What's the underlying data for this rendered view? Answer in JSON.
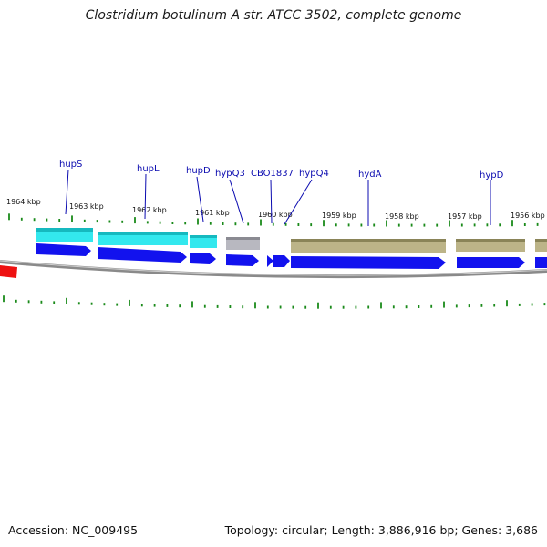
{
  "title": "Clostridium botulinum A str. ATCC 3502, complete genome",
  "ticks": [
    "1964 kbp",
    "1963 kbp",
    "1962 kbp",
    "1961 kbp",
    "1960 kbp",
    "1959 kbp",
    "1958 kbp",
    "1957 kbp",
    "1956 kbp"
  ],
  "genes": [
    "hupS",
    "hupL",
    "hupD",
    "hypQ3",
    "CBO1837",
    "hypQ4",
    "hydA",
    "hypD"
  ],
  "colors": {
    "cds_strand": "#1212ee",
    "hup_feature": "#33e8ee",
    "hyp_feature": "#bcb488",
    "grey_feature": "#b8b8c0",
    "red_feature": "#ee1111",
    "ticks": "#1a8a1a",
    "backbone": "#888888",
    "label": "#0b0bb0"
  },
  "footer": {
    "accession": "Accession: NC_009495",
    "stats": "Topology: circular; Length: 3,886,916 bp; Genes: 3,686"
  }
}
